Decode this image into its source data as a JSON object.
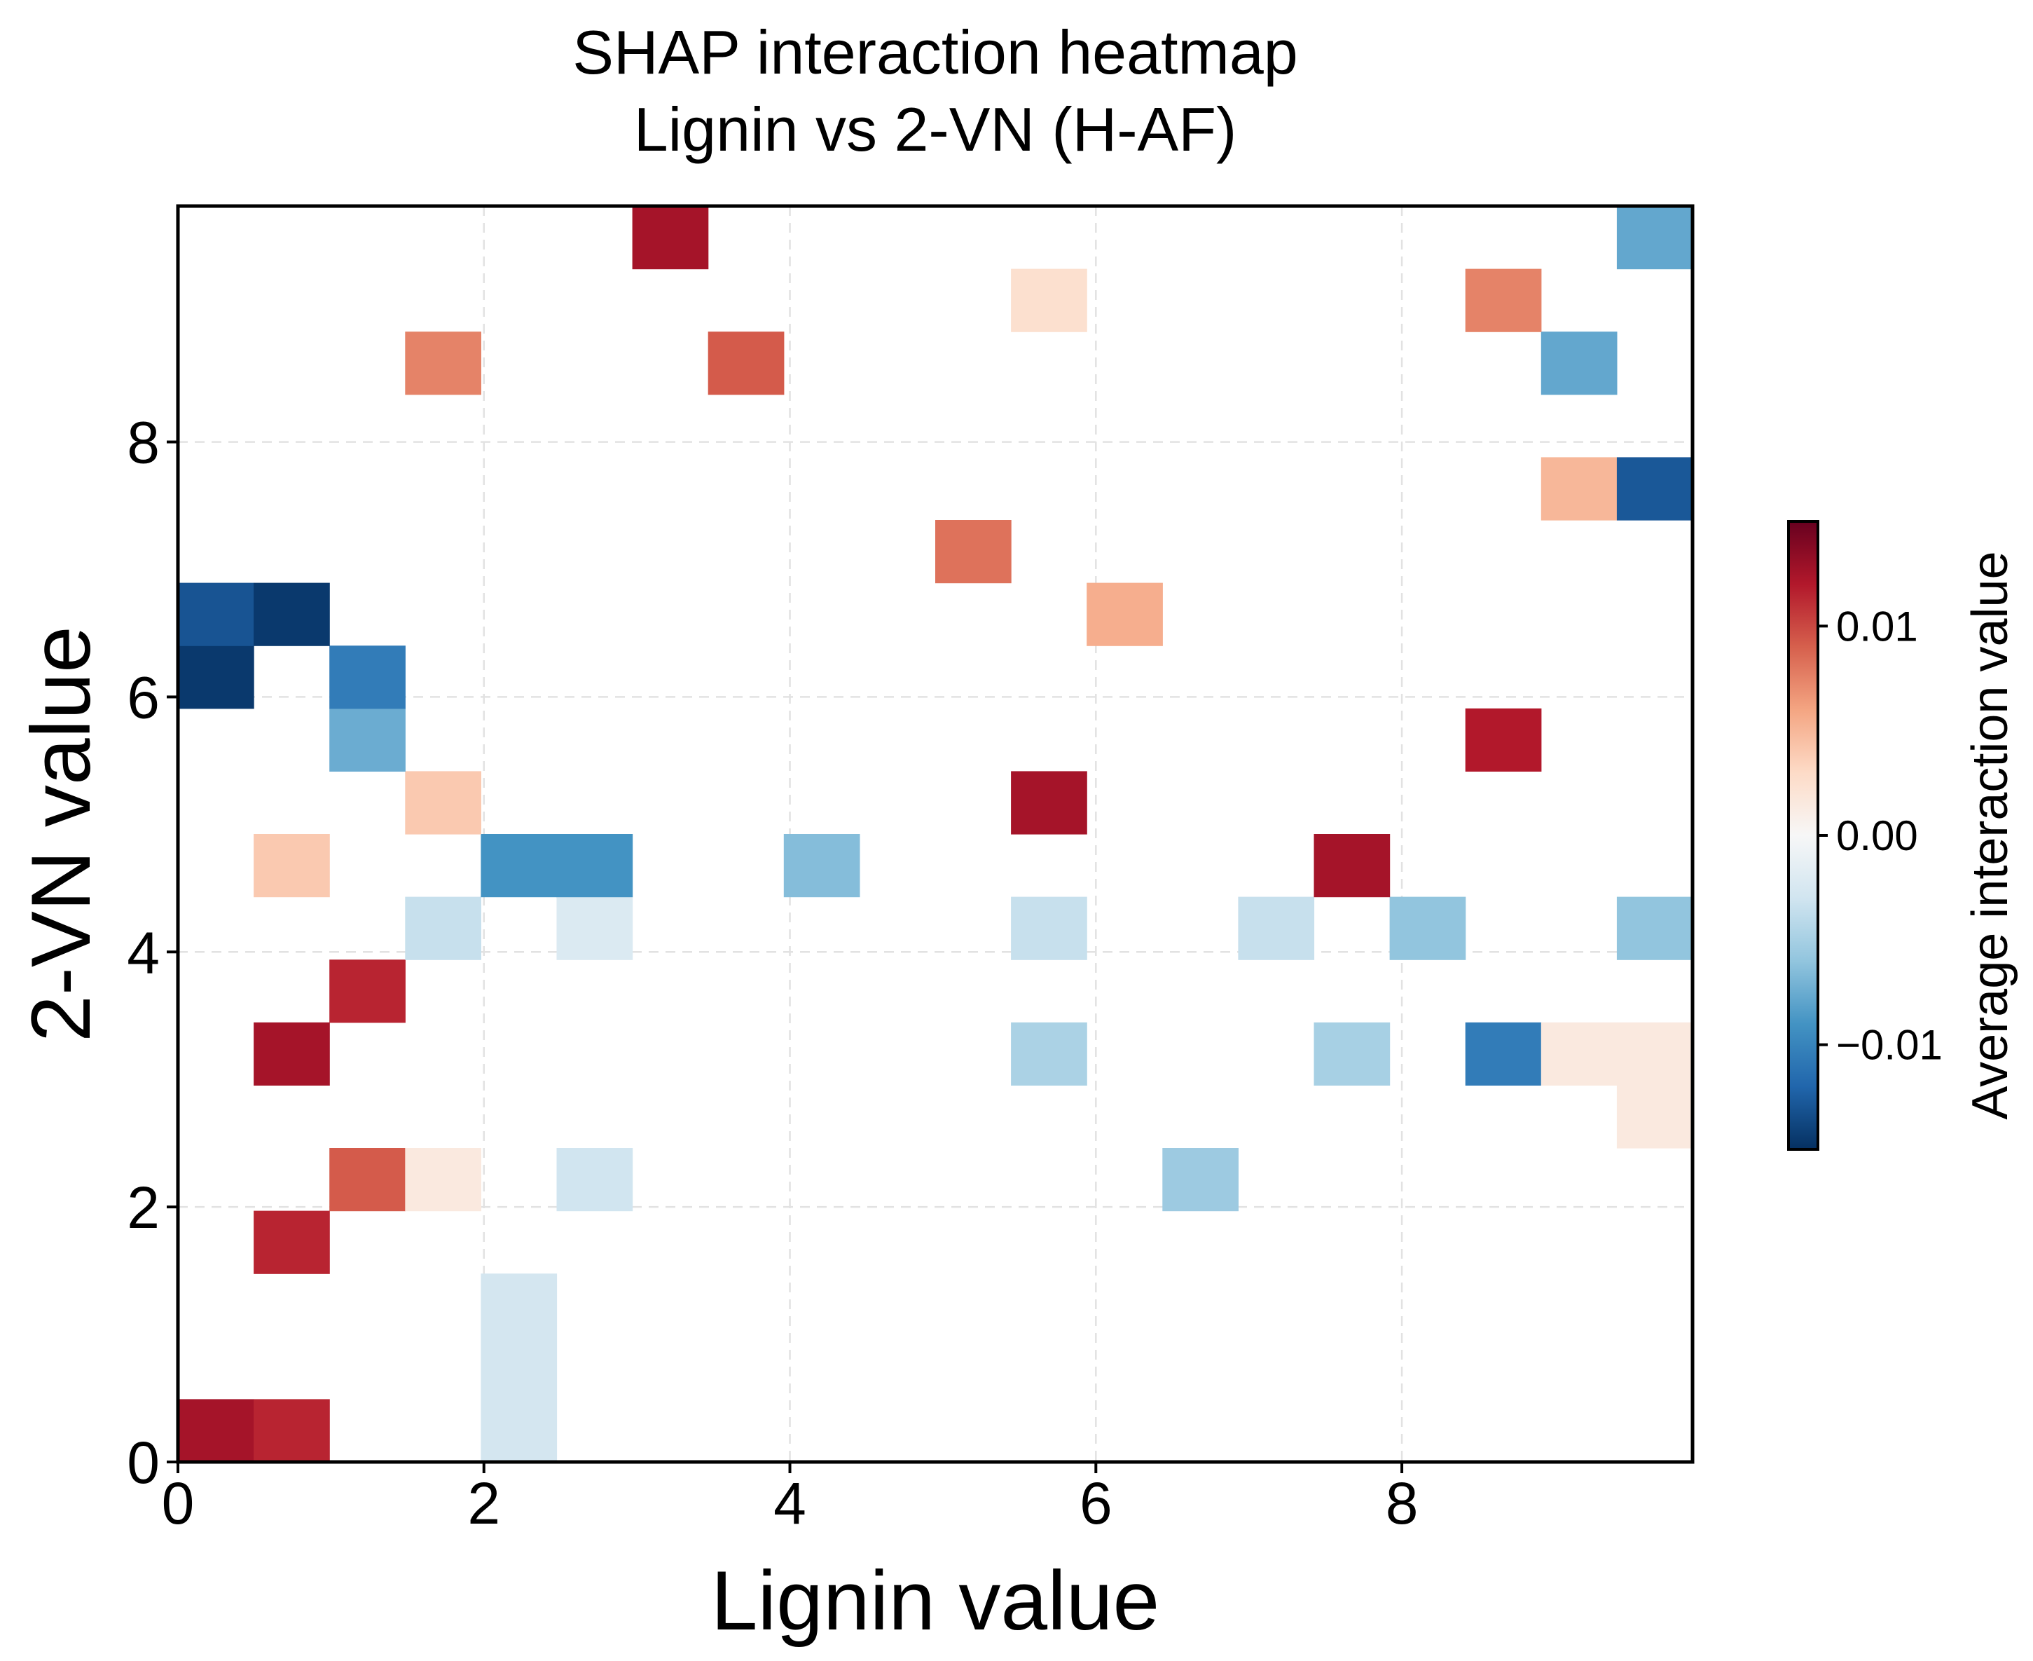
{
  "chart_data": {
    "type": "heatmap",
    "title": "SHAP interaction heatmap",
    "subtitle": "Lignin vs 2-VN (H-AF)",
    "xlabel": "Lignin value",
    "ylabel": "2-VN value",
    "xlim": [
      0,
      9.9
    ],
    "ylim": [
      0,
      9.85
    ],
    "xticks": [
      0,
      2,
      4,
      6,
      8
    ],
    "yticks": [
      0,
      2,
      4,
      6,
      8
    ],
    "bin_width": 0.495,
    "bin_height": 0.4925,
    "grid": true,
    "colormap": "RdBu_r",
    "colorbar": {
      "label": "Average interaction value",
      "min": -0.015,
      "max": 0.015,
      "ticks": [
        0.01,
        0.0,
        -0.01
      ],
      "tick_labels": [
        "0.01",
        "0.00",
        "−0.01"
      ]
    },
    "cells": [
      {
        "col": 0,
        "row": 0,
        "value": 0.0125
      },
      {
        "col": 1,
        "row": 0,
        "value": 0.0115
      },
      {
        "col": 4,
        "row": 0,
        "value": -0.0028
      },
      {
        "col": 4,
        "row": 1,
        "value": -0.0028
      },
      {
        "col": 4,
        "row": 2,
        "value": -0.0028
      },
      {
        "col": 1,
        "row": 3,
        "value": 0.0115
      },
      {
        "col": 2,
        "row": 4,
        "value": 0.0092
      },
      {
        "col": 3,
        "row": 4,
        "value": 0.0015
      },
      {
        "col": 5,
        "row": 4,
        "value": -0.003
      },
      {
        "col": 13,
        "row": 4,
        "value": -0.0055
      },
      {
        "col": 19,
        "row": 5,
        "value": 0.0015
      },
      {
        "col": 1,
        "row": 6,
        "value": 0.0125
      },
      {
        "col": 11,
        "row": 6,
        "value": -0.0048
      },
      {
        "col": 15,
        "row": 6,
        "value": -0.005
      },
      {
        "col": 17,
        "row": 6,
        "value": -0.0105
      },
      {
        "col": 18,
        "row": 6,
        "value": 0.0015
      },
      {
        "col": 19,
        "row": 6,
        "value": 0.0015
      },
      {
        "col": 2,
        "row": 7,
        "value": 0.0115
      },
      {
        "col": 3,
        "row": 8,
        "value": -0.0035
      },
      {
        "col": 5,
        "row": 8,
        "value": -0.0022
      },
      {
        "col": 11,
        "row": 8,
        "value": -0.0035
      },
      {
        "col": 14,
        "row": 8,
        "value": -0.0035
      },
      {
        "col": 16,
        "row": 8,
        "value": -0.006
      },
      {
        "col": 19,
        "row": 8,
        "value": -0.006
      },
      {
        "col": 1,
        "row": 9,
        "value": 0.004
      },
      {
        "col": 4,
        "row": 9,
        "value": -0.009
      },
      {
        "col": 5,
        "row": 9,
        "value": -0.009
      },
      {
        "col": 8,
        "row": 9,
        "value": -0.0065
      },
      {
        "col": 15,
        "row": 9,
        "value": 0.0125
      },
      {
        "col": 3,
        "row": 10,
        "value": 0.004
      },
      {
        "col": 11,
        "row": 10,
        "value": 0.0125
      },
      {
        "col": 2,
        "row": 11,
        "value": -0.0075
      },
      {
        "col": 17,
        "row": 11,
        "value": 0.012
      },
      {
        "col": 0,
        "row": 12,
        "value": -0.0145
      },
      {
        "col": 2,
        "row": 12,
        "value": -0.0105
      },
      {
        "col": 0,
        "row": 13,
        "value": -0.013
      },
      {
        "col": 1,
        "row": 13,
        "value": -0.0145
      },
      {
        "col": 12,
        "row": 13,
        "value": 0.0055
      },
      {
        "col": 10,
        "row": 14,
        "value": 0.0082
      },
      {
        "col": 18,
        "row": 15,
        "value": 0.005
      },
      {
        "col": 19,
        "row": 15,
        "value": -0.0128
      },
      {
        "col": 3,
        "row": 17,
        "value": 0.0075
      },
      {
        "col": 7,
        "row": 17,
        "value": 0.0092
      },
      {
        "col": 18,
        "row": 17,
        "value": -0.0078
      },
      {
        "col": 11,
        "row": 18,
        "value": 0.0025
      },
      {
        "col": 17,
        "row": 18,
        "value": 0.0075
      },
      {
        "col": 6,
        "row": 19,
        "value": 0.0125
      },
      {
        "col": 19,
        "row": 19,
        "value": -0.0078
      }
    ]
  }
}
